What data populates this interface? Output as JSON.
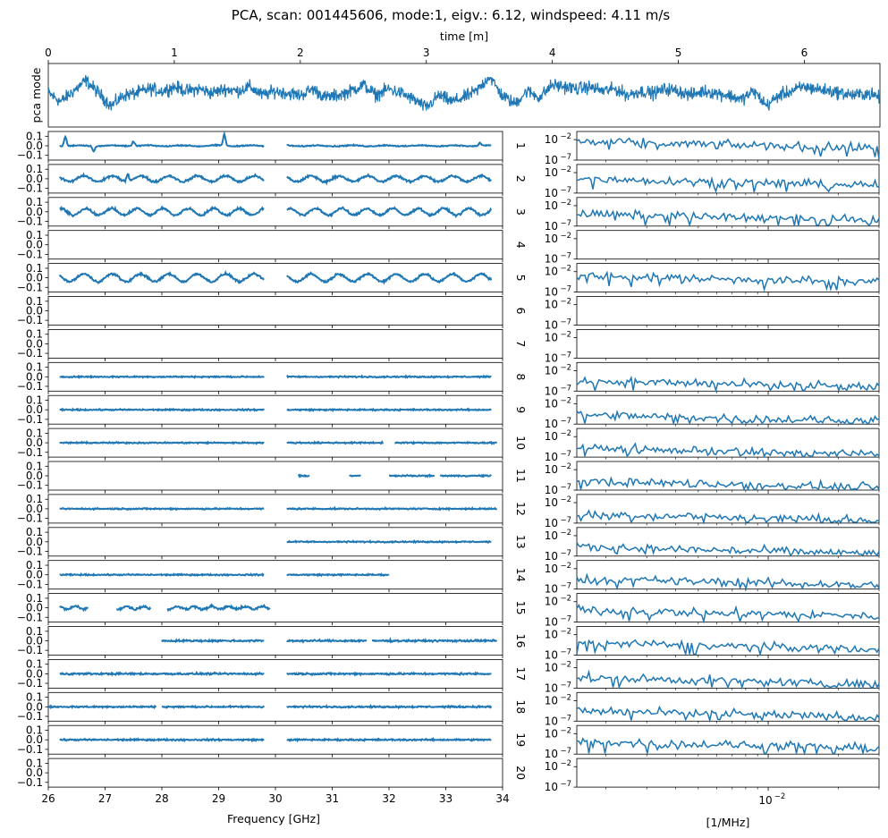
{
  "chart_data": {
    "type": "line",
    "title": "PCA, scan: 001445606, mode:1, eigv.: 6.12, windspeed: 4.11 m/s",
    "color": "#1f77b4",
    "top_panel": {
      "type": "line",
      "xlabel": "time [m]",
      "ylabel": "pca mode",
      "xlim": [
        0,
        6.6
      ],
      "xticks": [
        "0",
        "1",
        "2",
        "3",
        "4",
        "5",
        "6"
      ],
      "y_range_normalized": [
        -1,
        1
      ],
      "x_minutes": [
        0,
        0.1,
        0.2,
        0.3,
        0.4,
        0.5,
        0.6,
        0.7,
        0.8,
        0.9,
        1.0,
        1.1,
        1.2,
        1.3,
        1.4,
        1.5,
        1.6,
        1.7,
        1.8,
        1.9,
        2.0,
        2.1,
        2.2,
        2.3,
        2.4,
        2.5,
        2.6,
        2.7,
        2.8,
        2.9,
        3.0,
        3.1,
        3.2,
        3.3,
        3.4,
        3.5,
        3.6,
        3.7,
        3.8,
        3.9,
        4.0,
        4.1,
        4.2,
        4.3,
        4.4,
        4.5,
        4.6,
        4.7,
        4.8,
        4.9,
        5.0,
        5.1,
        5.2,
        5.3,
        5.4,
        5.5,
        5.6,
        5.7,
        5.8,
        5.9,
        6.0,
        6.1,
        6.2,
        6.3,
        6.4,
        6.5,
        6.6
      ],
      "y_values": [
        0.1,
        -0.3,
        0.2,
        0.7,
        0.1,
        -0.5,
        0.0,
        0.1,
        0.3,
        0.2,
        0.4,
        0.2,
        0.3,
        0.1,
        0.3,
        0.2,
        0.4,
        0.0,
        0.2,
        0.1,
        0.0,
        0.3,
        -0.1,
        0.0,
        0.2,
        0.5,
        0.0,
        0.3,
        0.1,
        -0.2,
        -0.6,
        0.0,
        -0.3,
        -0.1,
        0.2,
        0.9,
        0.0,
        -0.4,
        0.2,
        -0.1,
        0.5,
        0.4,
        0.3,
        0.4,
        0.2,
        0.3,
        0.0,
        0.2,
        0.1,
        0.3,
        0.2,
        0.0,
        0.2,
        0.1,
        0.0,
        -0.2,
        0.2,
        -0.5,
        0.0,
        0.2,
        0.4,
        0.3,
        0.2,
        0.1,
        0.0,
        0.1,
        -0.1
      ]
    },
    "left_panels": {
      "xlabel": "Frequency [GHz]",
      "xlim": [
        26,
        34
      ],
      "xticks": [
        "26",
        "27",
        "28",
        "29",
        "30",
        "31",
        "32",
        "33",
        "34"
      ],
      "ylim": [
        -0.15,
        0.15
      ],
      "yticks": [
        "0.1",
        "0.0",
        "−0.1"
      ]
    },
    "right_panels": {
      "xlabel": "[1/MHz]",
      "xscale": "log",
      "xlim": [
        0.0015,
        0.03
      ],
      "xtick_label": "10",
      "xtick_exp": "−2",
      "yscale": "log",
      "ylim": [
        1e-07,
        1
      ],
      "ytick_base": "10",
      "yticks_exp": [
        "−2",
        "−7"
      ]
    },
    "feeds": [
      {
        "id": "1",
        "segments": [
          [
            26.2,
            29.8
          ],
          [
            30.2,
            33.8
          ]
        ],
        "osc_amp": 0.005,
        "osc_period": 0.6,
        "noise": 0.005,
        "offset": 0.0,
        "spikes": [
          [
            26.3,
            0.1
          ],
          [
            26.8,
            -0.05
          ],
          [
            27.5,
            0.05
          ],
          [
            29.1,
            0.12
          ],
          [
            33.6,
            0.03
          ]
        ],
        "spec_level": -2.5
      },
      {
        "id": "2",
        "segments": [
          [
            26.2,
            29.8
          ],
          [
            30.2,
            33.8
          ]
        ],
        "osc_amp": 0.03,
        "osc_period": 0.5,
        "noise": 0.01,
        "offset": 0.0,
        "spikes": [
          [
            27.4,
            0.08
          ]
        ],
        "spec_level": -3.5
      },
      {
        "id": "3",
        "segments": [
          [
            26.2,
            29.8
          ],
          [
            30.2,
            33.8
          ]
        ],
        "osc_amp": 0.035,
        "osc_period": 0.45,
        "noise": 0.01,
        "offset": 0.0,
        "spikes": [],
        "spec_level": -4.0
      },
      {
        "id": "4",
        "segments": [],
        "osc_amp": 0,
        "osc_period": 1,
        "noise": 0,
        "offset": 0,
        "spikes": [],
        "spec_level": null
      },
      {
        "id": "5",
        "segments": [
          [
            26.2,
            29.8
          ],
          [
            30.2,
            33.8
          ]
        ],
        "osc_amp": 0.04,
        "osc_period": 0.5,
        "noise": 0.01,
        "offset": 0.0,
        "spikes": [],
        "spec_level": -3.0
      },
      {
        "id": "6",
        "segments": [],
        "osc_amp": 0,
        "osc_period": 1,
        "noise": 0,
        "offset": 0,
        "spikes": [],
        "spec_level": null
      },
      {
        "id": "7",
        "segments": [],
        "osc_amp": 0,
        "osc_period": 1,
        "noise": 0,
        "offset": 0,
        "spikes": [],
        "spec_level": null
      },
      {
        "id": "8",
        "segments": [
          [
            26.2,
            29.8
          ],
          [
            30.2,
            33.8
          ]
        ],
        "osc_amp": 0,
        "osc_period": 1,
        "noise": 0.006,
        "offset": 0.0,
        "spikes": [],
        "spec_level": -4.5
      },
      {
        "id": "9",
        "segments": [
          [
            26.2,
            29.8
          ],
          [
            30.2,
            33.8
          ]
        ],
        "osc_amp": 0,
        "osc_period": 1,
        "noise": 0.006,
        "offset": 0.0,
        "spikes": [],
        "spec_level": -4.8
      },
      {
        "id": "10",
        "segments": [
          [
            26.2,
            29.8
          ],
          [
            30.2,
            31.9
          ],
          [
            32.1,
            33.9
          ]
        ],
        "osc_amp": 0,
        "osc_period": 1,
        "noise": 0.006,
        "offset": 0.0,
        "spikes": [],
        "spec_level": -4.8
      },
      {
        "id": "11",
        "segments": [
          [
            30.4,
            30.6
          ],
          [
            31.3,
            31.5
          ],
          [
            32.0,
            32.8
          ],
          [
            32.9,
            33.8
          ]
        ],
        "osc_amp": 0,
        "osc_period": 1,
        "noise": 0.006,
        "offset": 0.0,
        "spikes": [],
        "spec_level": -4.8
      },
      {
        "id": "12",
        "segments": [
          [
            26.2,
            29.8
          ],
          [
            30.2,
            33.9
          ]
        ],
        "osc_amp": 0,
        "osc_period": 1,
        "noise": 0.006,
        "offset": 0.0,
        "spikes": [],
        "spec_level": -4.8
      },
      {
        "id": "13",
        "segments": [
          [
            30.2,
            33.8
          ]
        ],
        "osc_amp": 0,
        "osc_period": 1,
        "noise": 0.006,
        "offset": 0.0,
        "spikes": [],
        "spec_level": -4.8
      },
      {
        "id": "14",
        "segments": [
          [
            26.2,
            29.8
          ],
          [
            30.2,
            32.0
          ]
        ],
        "osc_amp": 0,
        "osc_period": 1,
        "noise": 0.006,
        "offset": 0.0,
        "spikes": [],
        "spec_level": -4.5
      },
      {
        "id": "15",
        "segments": [
          [
            26.2,
            26.7
          ],
          [
            27.2,
            27.8
          ],
          [
            28.1,
            29.9
          ]
        ],
        "osc_amp": 0.015,
        "osc_period": 0.3,
        "noise": 0.01,
        "offset": 0.0,
        "spikes": [],
        "spec_level": -4.0
      },
      {
        "id": "16",
        "segments": [
          [
            28.0,
            29.8
          ],
          [
            30.2,
            31.6
          ],
          [
            31.7,
            33.9
          ]
        ],
        "osc_amp": 0,
        "osc_period": 1,
        "noise": 0.008,
        "offset": 0.0,
        "spikes": [],
        "spec_level": -4.0
      },
      {
        "id": "17",
        "segments": [
          [
            26.2,
            29.8
          ],
          [
            30.2,
            33.8
          ]
        ],
        "osc_amp": 0,
        "osc_period": 1,
        "noise": 0.008,
        "offset": 0.0,
        "spikes": [],
        "spec_level": -4.5
      },
      {
        "id": "18",
        "segments": [
          [
            26.0,
            27.9
          ],
          [
            28.0,
            29.8
          ],
          [
            30.2,
            33.8
          ]
        ],
        "osc_amp": 0,
        "osc_period": 1,
        "noise": 0.007,
        "offset": 0.0,
        "spikes": [],
        "spec_level": -4.5
      },
      {
        "id": "19",
        "segments": [
          [
            26.2,
            29.8
          ],
          [
            30.2,
            33.8
          ]
        ],
        "osc_amp": 0,
        "osc_period": 1,
        "noise": 0.007,
        "offset": 0.0,
        "spikes": [],
        "spec_level": -4.0
      },
      {
        "id": "20",
        "segments": [],
        "osc_amp": 0,
        "osc_period": 1,
        "noise": 0,
        "offset": 0,
        "spikes": [],
        "spec_level": null
      }
    ]
  }
}
